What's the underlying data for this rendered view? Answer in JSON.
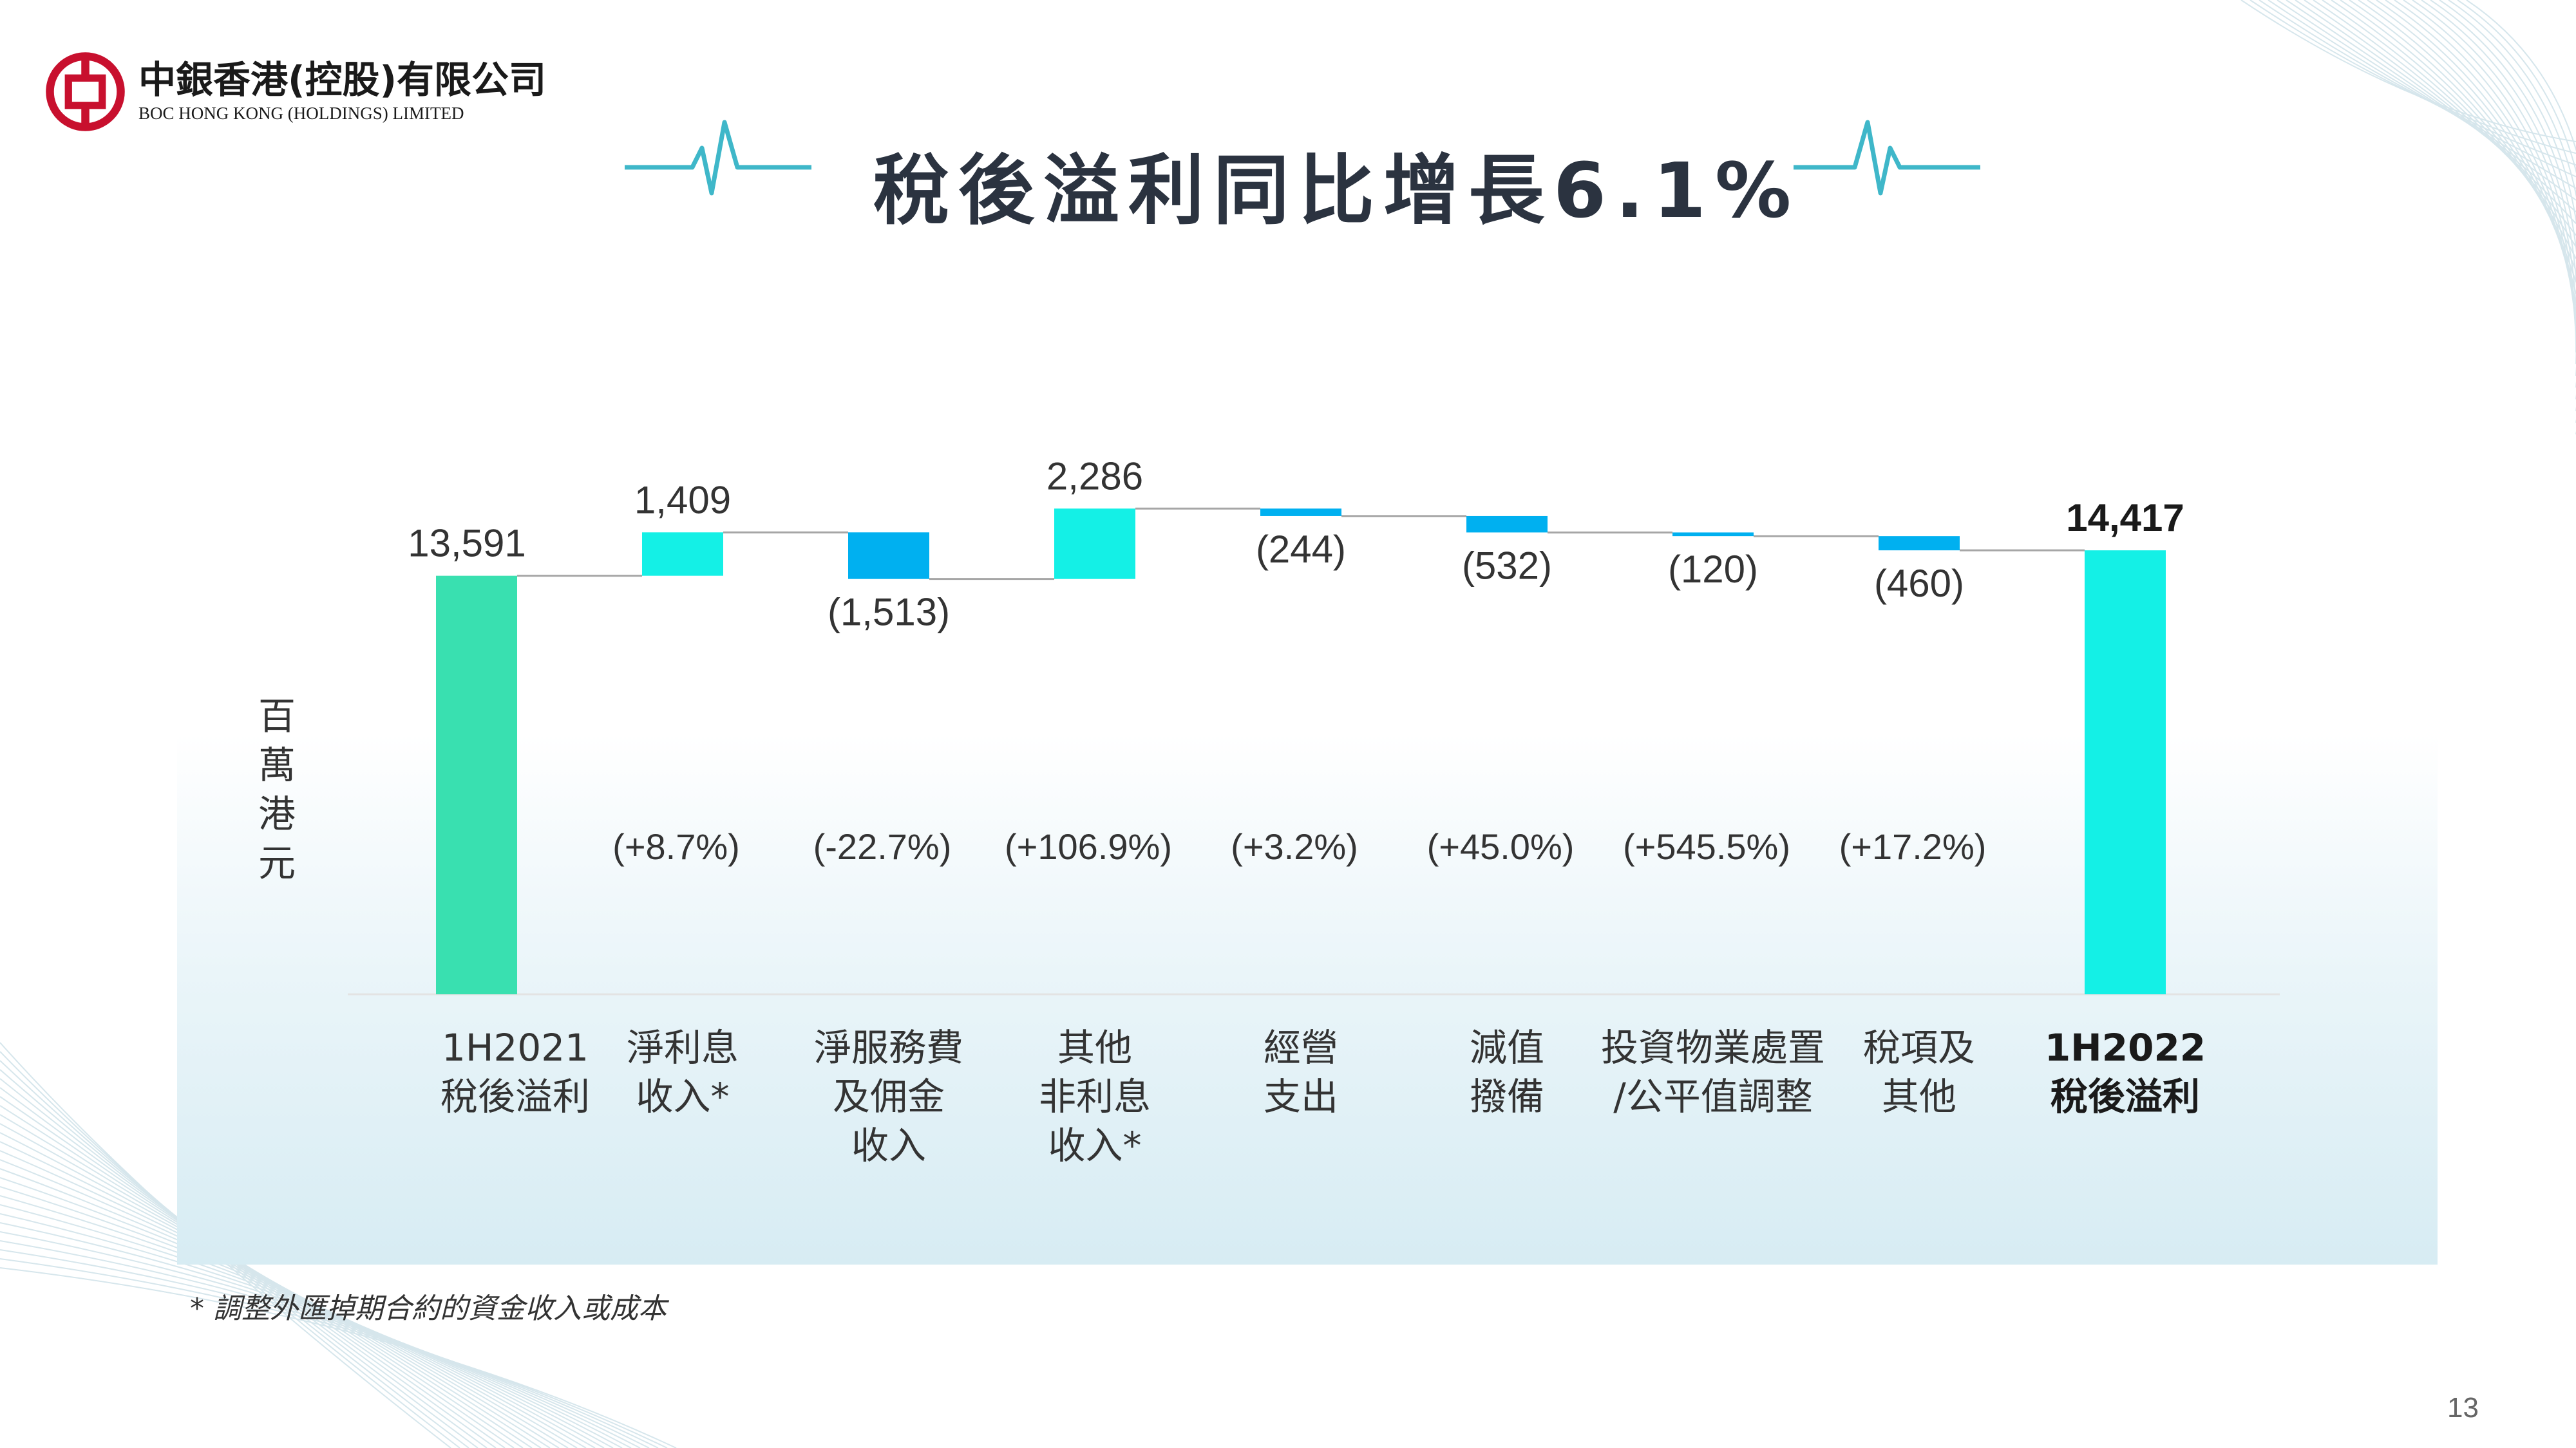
{
  "brand": {
    "name_cn": "中銀香港(控股)有限公司",
    "name_en": "BOC HONG KONG (HOLDINGS) LIMITED",
    "color": "#c8102e"
  },
  "page_title": "稅後溢利同比增長6.1%",
  "unit_label": "百萬港元",
  "footnote": "* 調整外匯掉期合約的資金收入或成本",
  "page_number": "13",
  "colors": {
    "start_bar": "#39e0b0",
    "increase_bar": "#14f0e6",
    "decrease_bar": "#00b0f0",
    "end_bar": "#14f0e6",
    "connector": "#a6a6a6",
    "heartbeat": "#3fb7c9"
  },
  "chart_data": {
    "type": "waterfall",
    "title": "",
    "ylabel": "百萬港元",
    "baseline": 0,
    "categories": [
      "1H2021\n稅後溢利",
      "淨利息\n收入*",
      "淨服務費\n及佣金\n收入",
      "其他\n非利息\n收入*",
      "經營\n支出",
      "減值\n撥備",
      "投資物業處置\n/公平值調整",
      "稅項及\n其他",
      "1H2022\n稅後溢利"
    ],
    "values": [
      13591,
      1409,
      -1513,
      2286,
      -244,
      -532,
      -120,
      -460,
      14417
    ],
    "value_labels": [
      "13,591",
      "1,409",
      "(1,513)",
      "2,286",
      "(244)",
      "(532)",
      "(120)",
      "(460)",
      "14,417"
    ],
    "kinds": [
      "total",
      "delta",
      "delta",
      "delta",
      "delta",
      "delta",
      "delta",
      "delta",
      "total"
    ],
    "pct_labels": [
      "",
      "(+8.7%)",
      "(-22.7%)",
      "(+106.9%)",
      "(+3.2%)",
      "(+45.0%)",
      "(+545.5%)",
      "(+17.2%)",
      ""
    ],
    "bold_categories": [
      8
    ]
  }
}
